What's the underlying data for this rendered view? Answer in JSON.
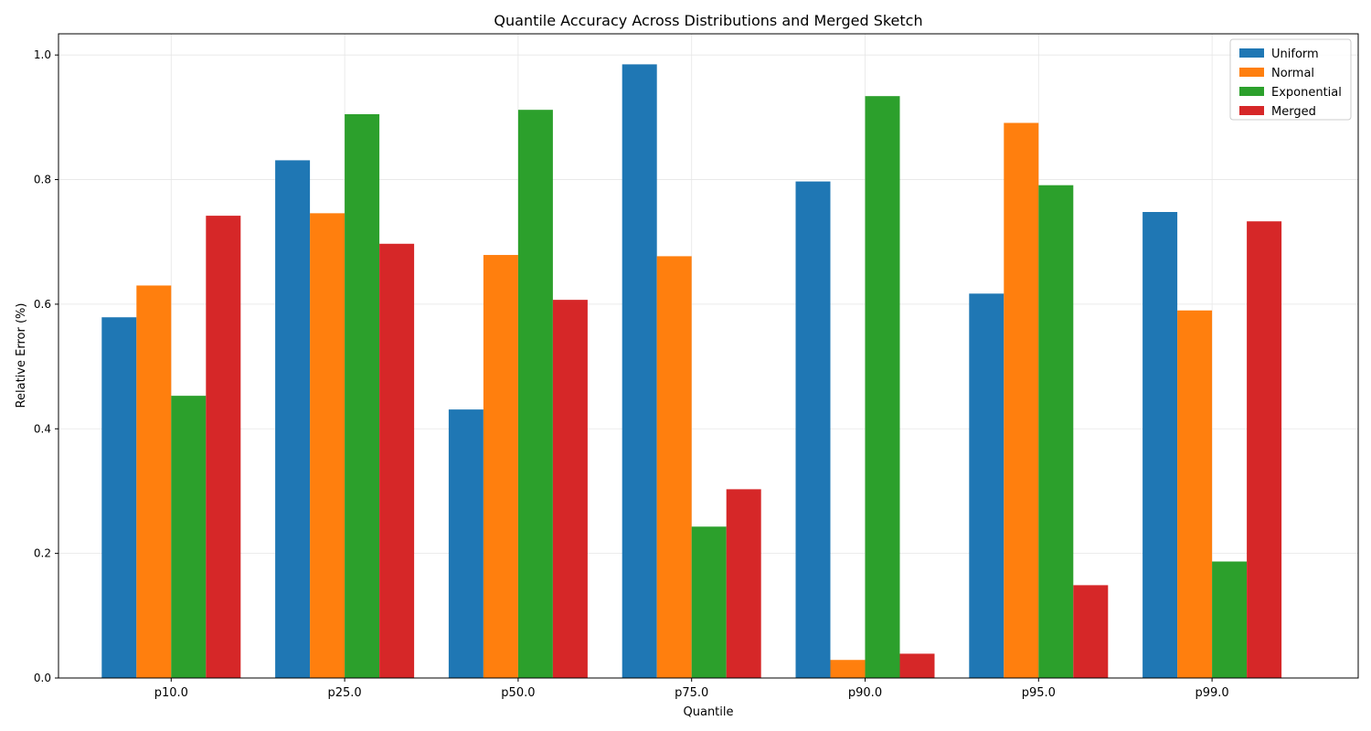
{
  "chart_data": {
    "type": "bar",
    "title": "Quantile Accuracy Across Distributions and Merged Sketch",
    "xlabel": "Quantile",
    "ylabel": "Relative Error (%)",
    "categories": [
      "p10.0",
      "p25.0",
      "p50.0",
      "p75.0",
      "p90.0",
      "p95.0",
      "p99.0"
    ],
    "ylim": [
      0,
      1.034
    ],
    "yticks": [
      "0.0",
      "0.2",
      "0.4",
      "0.6",
      "0.8",
      "1.0"
    ],
    "grid": true,
    "legend_position": "top-right",
    "series": [
      {
        "name": "Uniform",
        "color": "#1f77b4",
        "values": [
          0.579,
          0.831,
          0.431,
          0.985,
          0.797,
          0.617,
          0.748
        ]
      },
      {
        "name": "Normal",
        "color": "#ff7f0e",
        "values": [
          0.63,
          0.746,
          0.679,
          0.677,
          0.029,
          0.891,
          0.59
        ]
      },
      {
        "name": "Exponential",
        "color": "#2ca02c",
        "values": [
          0.453,
          0.905,
          0.912,
          0.243,
          0.934,
          0.791,
          0.187
        ]
      },
      {
        "name": "Merged",
        "color": "#d62728",
        "values": [
          0.742,
          0.697,
          0.607,
          0.303,
          0.039,
          0.149,
          0.733
        ]
      }
    ]
  }
}
